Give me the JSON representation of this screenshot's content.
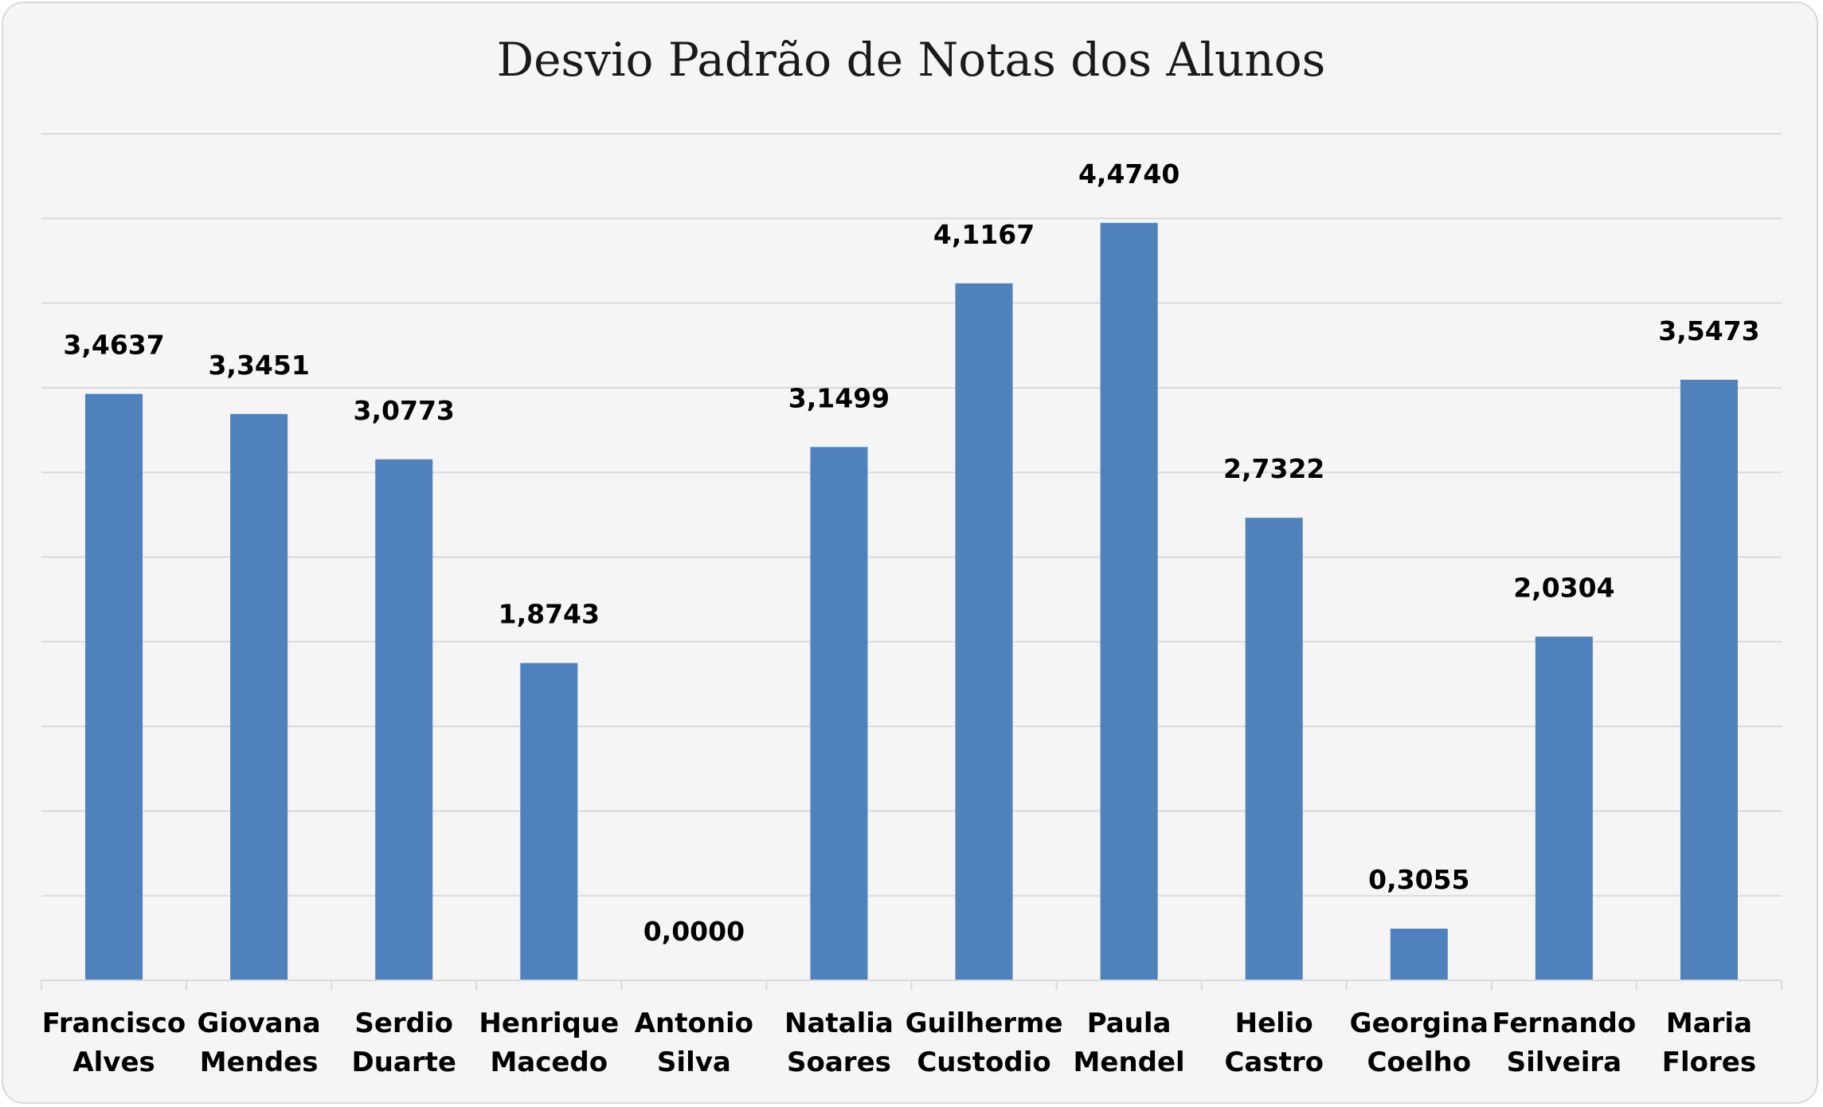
{
  "chart_data": {
    "type": "bar",
    "title": "Desvio Padrão de Notas dos Alunos",
    "xlabel": "",
    "ylabel": "",
    "categories": [
      [
        "Francisco",
        "Alves"
      ],
      [
        "Giovana",
        "Mendes"
      ],
      [
        "Serdio",
        "Duarte"
      ],
      [
        "Henrique",
        "Macedo"
      ],
      [
        "Antonio",
        "Silva"
      ],
      [
        "Natalia",
        "Soares"
      ],
      [
        "Guilherme",
        "Custodio"
      ],
      [
        "Paula",
        "Mendel"
      ],
      [
        "Helio",
        "Castro"
      ],
      [
        "Georgina",
        "Coelho"
      ],
      [
        "Fernando",
        "Silveira"
      ],
      [
        "Maria",
        "Flores"
      ]
    ],
    "values": [
      3.4637,
      3.3451,
      3.0773,
      1.8743,
      0.0,
      3.1499,
      4.1167,
      4.474,
      2.7322,
      0.3055,
      2.0304,
      3.5473
    ],
    "data_labels": [
      "3,4637",
      "3,3451",
      "3,0773",
      "1,8743",
      "0,0000",
      "3,1499",
      "4,1167",
      "4,4740",
      "2,7322",
      "0,3055",
      "2,0304",
      "3,5473"
    ],
    "ylim": [
      0,
      5
    ],
    "gridline_step": 0.5,
    "grid": true,
    "legend": "none",
    "colors": {
      "bar": "#4f81bd",
      "grid": "#d9d9d9",
      "background": "#f5f5f5"
    }
  }
}
